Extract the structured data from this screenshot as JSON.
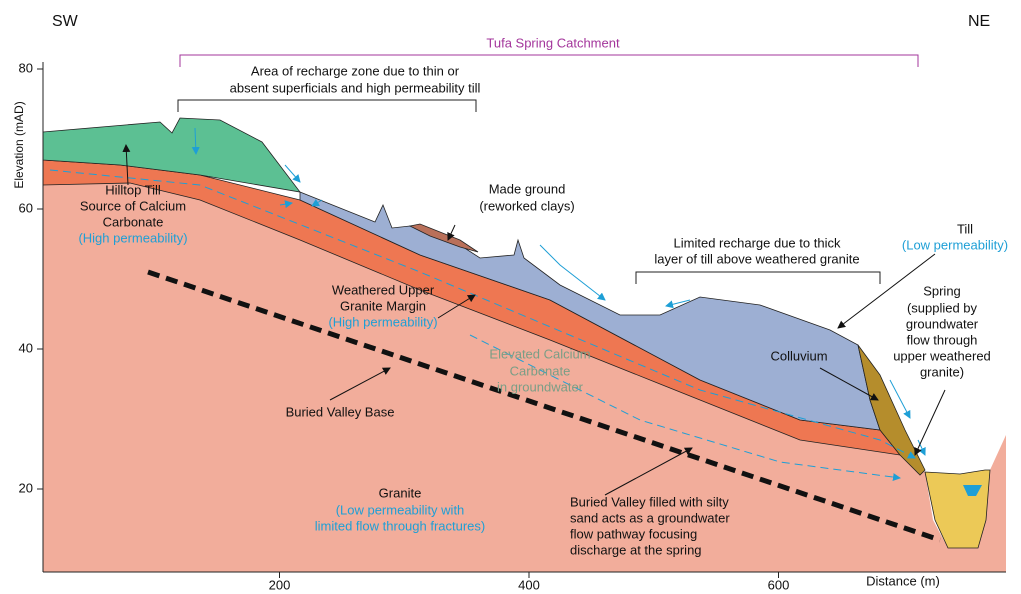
{
  "orientation": {
    "left": "SW",
    "right": "NE"
  },
  "axes": {
    "y_title": "Elevation (mAD)",
    "x_title": "Distance (m)",
    "yticks": [
      20,
      40,
      60,
      80
    ],
    "xticks": [
      200,
      400,
      600
    ]
  },
  "annotations": {
    "catchment": "Tufa Spring Catchment",
    "recharge_zone": [
      "Area of recharge zone due to thin or",
      "absent superficials and high permeability till"
    ],
    "hilltop_till": {
      "lines": [
        "Hilltop Till",
        "Source of Calcium",
        "Carbonate"
      ],
      "note": "(High permeability)"
    },
    "made_ground": [
      "Made ground",
      "(reworked clays)"
    ],
    "till": {
      "lines": [
        "Till"
      ],
      "note": "(Low permeability)"
    },
    "limited_recharge": [
      "Limited recharge due to thick",
      "layer of till above weathered granite"
    ],
    "weathered_granite": {
      "lines": [
        "Weathered Upper",
        "Granite Margin"
      ],
      "note": "(High permeability)"
    },
    "spring": [
      "Spring",
      "(supplied by",
      "groundwater",
      "flow through",
      "upper weathered",
      "granite)"
    ],
    "colluvium": "Colluvium",
    "calcium_groundwater": [
      "Elevated Calcium",
      "Carbonate",
      "in groundwater"
    ],
    "buried_valley_base": "Buried Valley Base",
    "granite": {
      "lines": [
        "Granite"
      ],
      "notes": [
        "(Low permeability with",
        "limited flow through fractures)"
      ]
    },
    "buried_valley_fill": [
      "Buried Valley filled with silty",
      "sand acts as a groundwater",
      "flow pathway focusing",
      "discharge at the spring"
    ]
  }
}
